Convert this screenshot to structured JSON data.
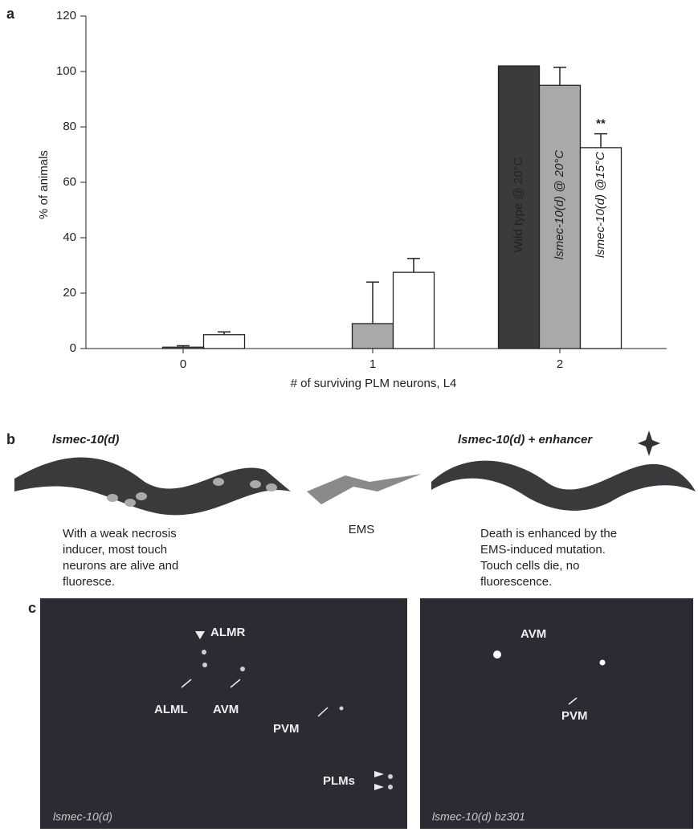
{
  "chart_data": {
    "type": "bar",
    "panel_label": "a",
    "x_label": "# of surviving PLM neurons, L4",
    "y_label": "% of animals",
    "categories": [
      "0",
      "1",
      "2"
    ],
    "series": [
      {
        "name": "Wild type @ 20°C",
        "color": "#3b3b3d",
        "values": [
          0,
          0,
          102
        ],
        "errors": [
          null,
          null,
          null
        ]
      },
      {
        "name": "lsmec-10(d) @ 20°C",
        "color": "#a9a9a9",
        "values": [
          0.5,
          9,
          95
        ],
        "errors": [
          0.5,
          15,
          6.5
        ]
      },
      {
        "name": "lsmec-10(d) @15°C",
        "color": "#ffffff",
        "values": [
          5,
          27.5,
          72.5
        ],
        "errors": [
          1,
          5,
          5
        ]
      }
    ],
    "annotation": "**",
    "ylim": [
      0,
      120
    ],
    "yticks": [
      0,
      20,
      40,
      60,
      80,
      100,
      120
    ],
    "grid": false
  },
  "panel_b": {
    "label": "b",
    "left_title": "lsmec-10(d)",
    "right_title": "lsmec-10(d) + enhancer",
    "middle": "EMS",
    "left_text": [
      "With a weak necrosis",
      "inducer, most touch",
      "neurons are alive and",
      "fluoresce."
    ],
    "right_text": [
      "Death is enhanced by the",
      "EMS-induced mutation.",
      "Touch cells die, no",
      "fluorescence."
    ]
  },
  "panel_c": {
    "label": "c",
    "left": {
      "caption": "lsmec-10(d)",
      "labels": [
        "ALMR",
        "ALML",
        "AVM",
        "PVM",
        "PLMs"
      ]
    },
    "right": {
      "caption": "lsmec-10(d) bz301",
      "labels": [
        "AVM",
        "PVM"
      ]
    }
  }
}
